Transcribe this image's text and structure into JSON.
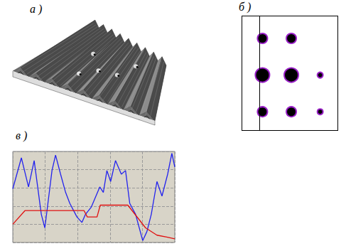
{
  "chart_data": [
    {
      "type": "surface",
      "title": "а )"
    },
    {
      "type": "scatter",
      "title": "б )",
      "color": "#000000",
      "tick_labels": false,
      "xlim": [
        -1.7,
        1.6
      ],
      "ylim": [
        -1.5,
        1.6
      ],
      "line_x": -1.1,
      "spots": [
        {
          "x": -1,
          "y": 1,
          "intensity": 2
        },
        {
          "x": 0,
          "y": 1,
          "intensity": 2
        },
        {
          "x": -1,
          "y": 0,
          "intensity": 3
        },
        {
          "x": 0,
          "y": 0,
          "intensity": 3
        },
        {
          "x": 1,
          "y": 0,
          "intensity": 1
        },
        {
          "x": -1,
          "y": -1,
          "intensity": 2
        },
        {
          "x": 0,
          "y": -1,
          "intensity": 2
        },
        {
          "x": 1,
          "y": -1,
          "intensity": 1
        }
      ]
    },
    {
      "type": "line",
      "title": "в )",
      "grid": true,
      "tick_labels": false,
      "xlim": [
        0,
        100
      ],
      "ylim": [
        0,
        100
      ],
      "xticks": [
        0,
        20,
        40,
        60,
        80,
        100
      ],
      "yticks": [
        0,
        20,
        40,
        60,
        80,
        100
      ],
      "series": [
        {
          "color": "#2222ee",
          "x": [
            0,
            5.3,
            9.7,
            13.2,
            17.6,
            19.8,
            24.2,
            26.4,
            29.5,
            32.6,
            35.2,
            39.6,
            42.7,
            44.9,
            48.5,
            53.7,
            55.9,
            58.1,
            60.4,
            63.4,
            67.0,
            69.6,
            72.2,
            75.8,
            80.2,
            82.8,
            85.5,
            89.0,
            92.1,
            95.6,
            98.2,
            100
          ],
          "values": [
            59,
            93,
            61,
            90,
            31,
            16,
            79,
            96,
            75,
            55,
            43,
            28,
            22,
            31,
            39,
            61,
            55,
            79,
            67,
            90,
            75,
            79,
            43,
            31,
            2,
            12,
            31,
            67,
            51,
            75,
            98,
            83
          ]
        },
        {
          "color": "#e01010",
          "x": [
            0,
            7.5,
            36,
            44,
            46,
            52,
            54,
            71,
            82,
            89,
            95,
            100
          ],
          "values": [
            20,
            35,
            35,
            35,
            28,
            28,
            41,
            41,
            16,
            8,
            6,
            4
          ]
        }
      ]
    }
  ]
}
